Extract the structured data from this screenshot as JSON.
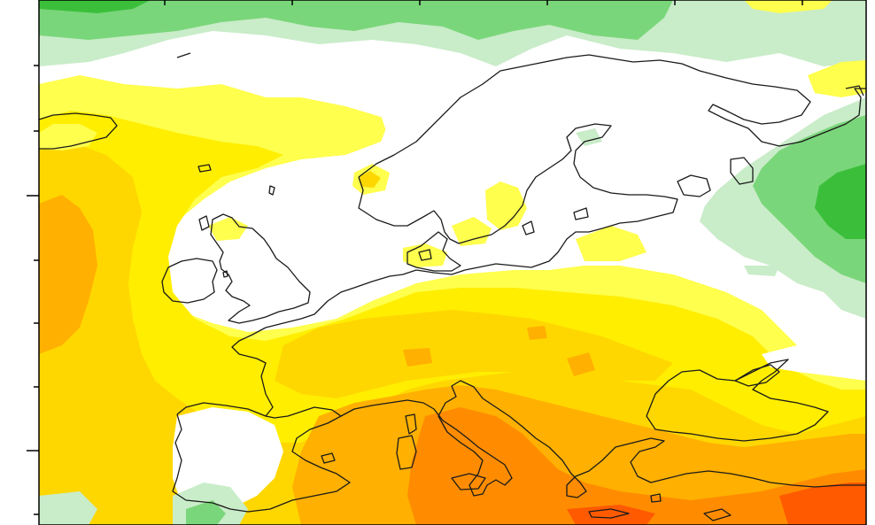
{
  "map": {
    "projection": "regional-lat-lon",
    "region": "Europe",
    "fill_palette": {
      "green_dark": "#3bbf3b",
      "green_mid": "#7ad67a",
      "green_light": "#c9ecc9",
      "yellow_light": "#ffff4d",
      "yellow": "#ffee00",
      "yellow_orange": "#ffd700",
      "orange": "#ffb000",
      "orange_dark": "#ff8c00",
      "red_orange": "#ff5a00"
    },
    "coastline_color": "#1a1a1a",
    "frame_color": "#000000"
  }
}
